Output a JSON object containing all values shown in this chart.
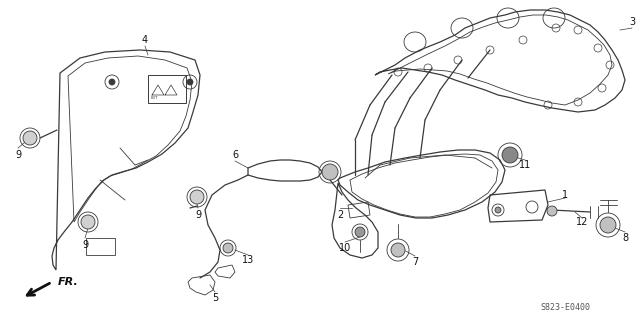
{
  "bg_color": "#ffffff",
  "line_color": "#3a3a3a",
  "part_code": "S823-E0400",
  "fig_w": 6.4,
  "fig_h": 3.19,
  "dpi": 100
}
